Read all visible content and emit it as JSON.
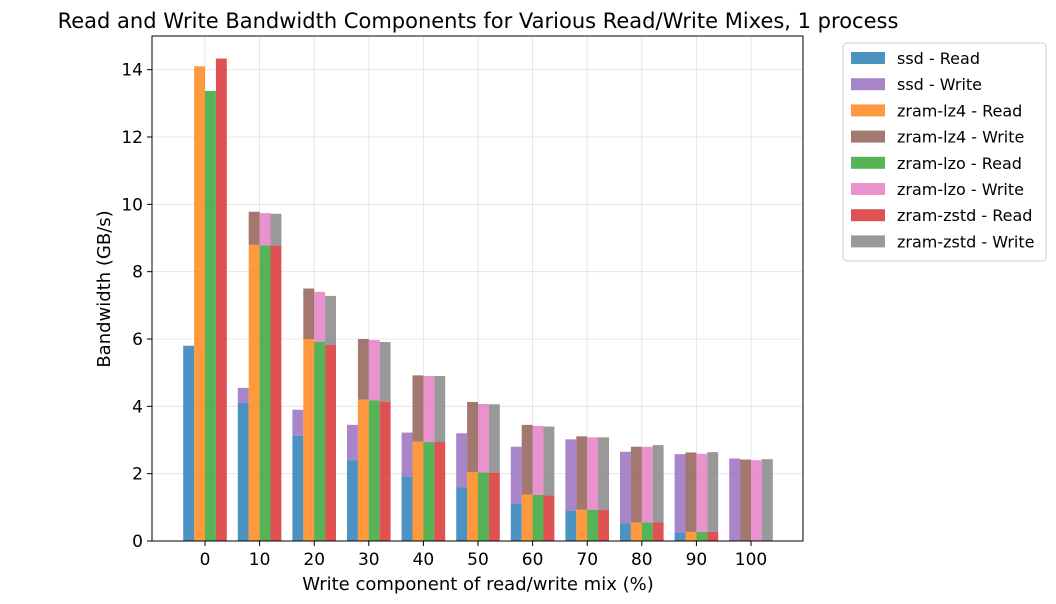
{
  "chart_data": {
    "type": "bar",
    "stacked_groups": true,
    "title": "Read and Write Bandwidth Components for Various Read/Write Mixes, 1 process",
    "xlabel": "Write component of read/write mix (%)",
    "ylabel": "Bandwidth (GB/s)",
    "ylim": [
      0,
      15
    ],
    "yticks": [
      0,
      2,
      4,
      6,
      8,
      10,
      12,
      14
    ],
    "categories": [
      "0",
      "10",
      "20",
      "30",
      "40",
      "50",
      "60",
      "70",
      "80",
      "90",
      "100"
    ],
    "grid": true,
    "legend_position": "outside-top-right",
    "groups": [
      {
        "name": "ssd",
        "read": [
          5.8,
          4.1,
          3.12,
          2.4,
          1.92,
          1.6,
          1.12,
          0.9,
          0.52,
          0.26,
          0.0
        ],
        "write": [
          0.0,
          0.45,
          0.78,
          1.05,
          1.3,
          1.6,
          1.68,
          2.12,
          2.13,
          2.32,
          2.45
        ],
        "read_label": "ssd - Read",
        "write_label": "ssd - Write",
        "read_color": "#1f77b4",
        "write_color": "#9467bd"
      },
      {
        "name": "zram-lz4",
        "read": [
          14.1,
          8.8,
          6.0,
          4.2,
          2.95,
          2.05,
          1.38,
          0.93,
          0.55,
          0.27,
          0.0
        ],
        "write": [
          0.0,
          0.98,
          1.5,
          1.8,
          1.97,
          2.08,
          2.07,
          2.18,
          2.25,
          2.36,
          2.42
        ],
        "read_label": "zram-lz4 - Read",
        "write_label": "zram-lz4 - Write",
        "read_color": "#ff7f0e",
        "write_color": "#8c564b"
      },
      {
        "name": "zram-lzo",
        "read": [
          13.37,
          8.78,
          5.92,
          4.18,
          2.94,
          2.04,
          1.37,
          0.93,
          0.55,
          0.27,
          0.0
        ],
        "write": [
          0.0,
          0.96,
          1.48,
          1.79,
          1.96,
          2.03,
          2.05,
          2.15,
          2.25,
          2.32,
          2.4
        ],
        "read_label": "zram-lzo - Read",
        "write_label": "zram-lzo - Write",
        "read_color": "#2ca02c",
        "write_color": "#e377c2"
      },
      {
        "name": "zram-zstd",
        "read": [
          14.33,
          8.78,
          5.82,
          4.14,
          2.94,
          2.03,
          1.35,
          0.92,
          0.55,
          0.27,
          0.0
        ],
        "write": [
          0.0,
          0.94,
          1.46,
          1.77,
          1.96,
          2.03,
          2.05,
          2.16,
          2.3,
          2.37,
          2.43
        ],
        "read_label": "zram-zstd - Read",
        "write_label": "zram-zstd - Write",
        "read_color": "#d62728",
        "write_color": "#7f7f7f"
      }
    ]
  }
}
